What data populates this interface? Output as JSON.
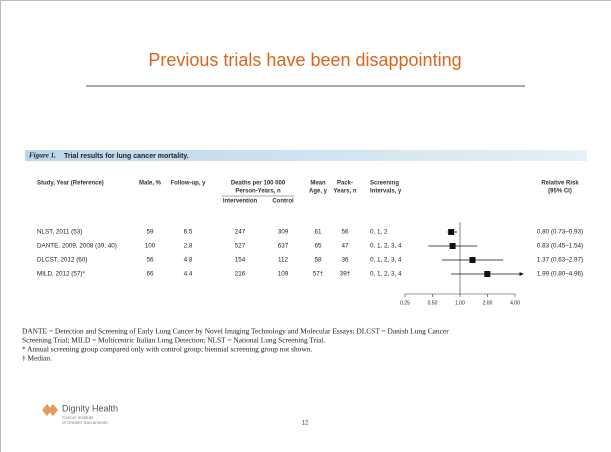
{
  "slide": {
    "title": "Previous trials have been disappointing",
    "page": "12",
    "logo": {
      "name": "Dignity Health",
      "sub1": "Cancer Institute",
      "sub2": "of Greater Sacramento"
    }
  },
  "figure": {
    "label": "Figure 1.",
    "caption": "Trial results for lung cancer mortality.",
    "headers": {
      "study": "Study, Year (Reference)",
      "male": "Male, %",
      "follow": "Follow-up, y",
      "deaths1": "Deaths per 100 000",
      "deaths2": "Person-Years, n",
      "intervention": "Intervention",
      "control": "Control",
      "age1": "Mean",
      "age2": "Age, y",
      "pack1": "Pack-",
      "pack2": "Years, n",
      "screen1": "Screening",
      "screen2": "Intervals, y",
      "rr1": "Relative Risk",
      "rr2": "(95% CI)"
    },
    "rows": [
      [
        "NLST, 2011 (53)",
        59,
        6.5,
        247,
        309,
        61,
        56,
        "0, 1, 2",
        "0.80 (0.73–0.93)"
      ],
      [
        "DANTE, 2009, 2008 (39, 40)",
        100,
        2.8,
        527,
        637,
        65,
        47,
        "0, 1, 2, 3, 4",
        "0.83 (0.45–1.54)"
      ],
      [
        "DLCST, 2012 (60)",
        56,
        4.8,
        154,
        112,
        58,
        36,
        "0, 1, 2, 3, 4",
        "1.37 (0.63–2.97)"
      ],
      [
        "MILD, 2012 (57)*",
        66,
        4.4,
        216,
        109,
        "57†",
        "39†",
        "0, 1, 2, 3, 4",
        "1.99 (0.80–4.96)"
      ]
    ],
    "forest": [
      {
        "rr": 0.8,
        "lo": 0.73,
        "hi": 0.93
      },
      {
        "rr": 0.83,
        "lo": 0.45,
        "hi": 1.54
      },
      {
        "rr": 1.37,
        "lo": 0.63,
        "hi": 2.97
      },
      {
        "rr": 1.99,
        "lo": 0.8,
        "hi": 4.96
      }
    ],
    "xticks": [
      {
        "value": 0.25,
        "label": "0.25"
      },
      {
        "value": 0.5,
        "label": "0.50"
      },
      {
        "value": 1,
        "label": "1.00"
      },
      {
        "value": 2,
        "label": "2.00"
      },
      {
        "value": 4,
        "label": "4.00"
      }
    ],
    "footnotes": [
      "DANTE = Detection and Screening of Early Lung Cancer by Novel Imaging Technology and Molecular Essays; DLCST = Danish Lung Cancer",
      "Screening Trial; MILD = Multicentric Italian Lung Detection; NLST = National Lung Screening Trial.",
      "* Annual screening group compared only with control group; biennial screening group not shown.",
      "† Median."
    ]
  }
}
